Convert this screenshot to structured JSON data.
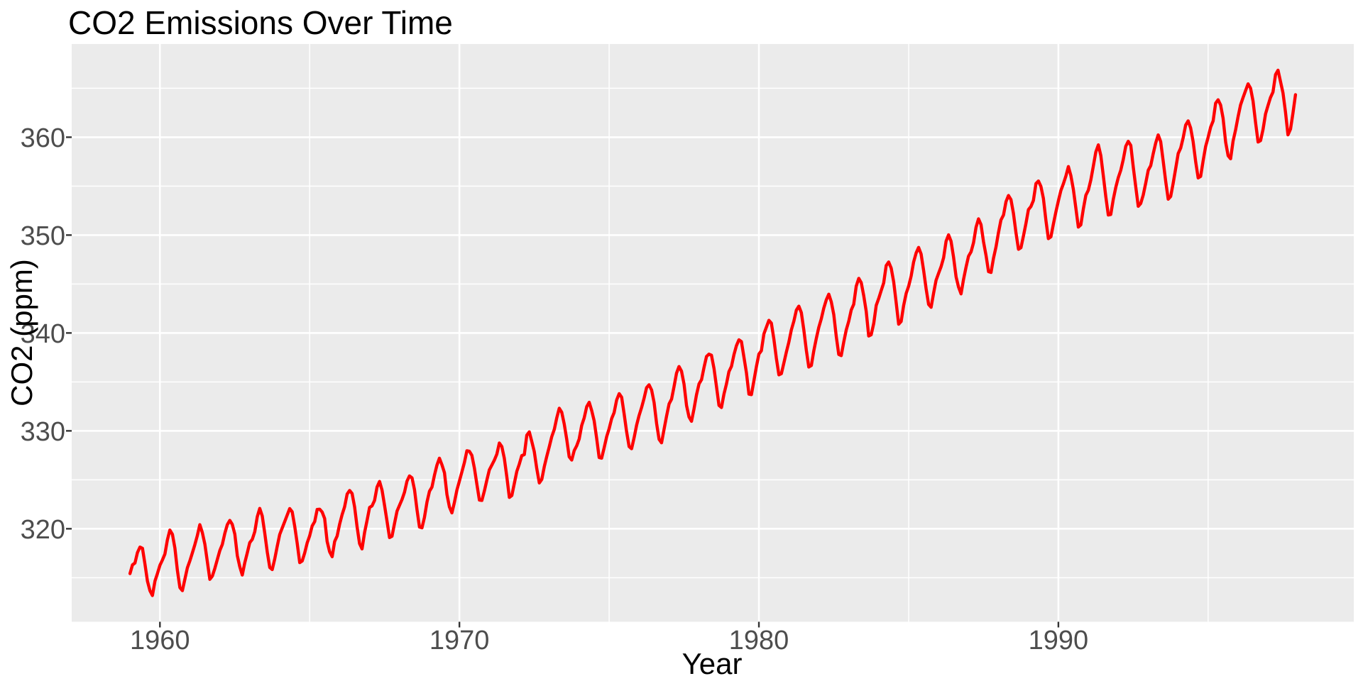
{
  "title": "CO2 Emissions Over Time",
  "chart_data": {
    "type": "line",
    "title": "CO2 Emissions Over Time",
    "xlabel": "Year",
    "ylabel": "CO2 (ppm)",
    "x_tick_labels": [
      "1960",
      "1970",
      "1980",
      "1990"
    ],
    "x_major_ticks": [
      1960,
      1970,
      1980,
      1990
    ],
    "x_minor_ticks": [
      1965,
      1975,
      1985,
      1995
    ],
    "y_tick_labels": [
      "320",
      "330",
      "340",
      "350",
      "360"
    ],
    "y_major_ticks": [
      320,
      330,
      340,
      350,
      360
    ],
    "y_minor_ticks": [
      315,
      325,
      335,
      345,
      355,
      365
    ],
    "xlim": [
      1957.054,
      1999.863
    ],
    "ylim": [
      310.497,
      369.523
    ],
    "grid": true,
    "legend": "none",
    "colors": {
      "line": "#FF0000",
      "panel_background": "#EBEBEB",
      "gridline": "#FFFFFF",
      "tick_mark": "#333333",
      "tick_label": "#4D4D4D",
      "title_text": "#000000",
      "page_background": "#FFFFFF"
    },
    "series": [
      {
        "name": "co2",
        "color": "#FF0000",
        "start_year": 1959,
        "frequency": 12,
        "values": [
          315.42,
          316.31,
          316.5,
          317.56,
          318.13,
          318.0,
          316.39,
          314.65,
          313.68,
          313.18,
          314.66,
          315.43,
          316.27,
          316.81,
          317.42,
          318.87,
          319.87,
          319.43,
          318.01,
          315.74,
          314.0,
          313.68,
          314.84,
          316.03,
          316.73,
          317.54,
          318.38,
          319.31,
          320.42,
          319.61,
          318.42,
          316.63,
          314.83,
          315.16,
          315.94,
          316.85,
          317.78,
          318.4,
          319.53,
          320.42,
          320.85,
          320.45,
          319.45,
          317.25,
          316.11,
          315.27,
          316.53,
          317.53,
          318.58,
          318.92,
          319.7,
          321.22,
          322.08,
          321.31,
          319.58,
          317.61,
          316.05,
          315.83,
          316.91,
          318.2,
          319.41,
          320.07,
          320.74,
          321.4,
          322.06,
          321.73,
          320.27,
          318.54,
          316.54,
          316.71,
          317.53,
          318.55,
          319.27,
          320.28,
          320.73,
          321.97,
          322.0,
          321.71,
          321.05,
          318.71,
          317.66,
          317.14,
          318.7,
          319.25,
          320.46,
          321.43,
          322.23,
          323.54,
          323.91,
          323.59,
          322.24,
          320.2,
          318.48,
          317.94,
          319.63,
          320.87,
          322.17,
          322.34,
          322.88,
          324.25,
          324.83,
          323.93,
          322.38,
          320.76,
          319.1,
          319.24,
          320.56,
          321.8,
          322.4,
          322.99,
          323.73,
          324.86,
          325.4,
          325.2,
          323.98,
          321.95,
          320.18,
          320.09,
          321.16,
          322.74,
          323.83,
          324.26,
          325.47,
          326.5,
          327.21,
          326.54,
          325.72,
          323.5,
          322.22,
          321.62,
          322.69,
          323.95,
          324.89,
          325.82,
          326.77,
          327.97,
          327.91,
          327.5,
          326.18,
          324.53,
          322.93,
          322.9,
          323.85,
          324.96,
          326.01,
          326.51,
          327.01,
          327.62,
          328.76,
          328.4,
          327.2,
          325.27,
          323.2,
          323.4,
          324.63,
          325.85,
          326.6,
          327.47,
          327.58,
          329.56,
          329.9,
          328.92,
          327.88,
          326.16,
          324.68,
          325.04,
          326.34,
          327.39,
          328.37,
          329.4,
          330.14,
          331.33,
          332.31,
          331.9,
          330.7,
          329.15,
          327.35,
          327.02,
          327.99,
          328.48,
          329.18,
          330.55,
          331.32,
          332.48,
          332.92,
          332.08,
          331.01,
          329.23,
          327.27,
          327.21,
          328.29,
          329.41,
          330.23,
          331.25,
          331.87,
          333.14,
          333.8,
          333.43,
          331.73,
          329.9,
          328.4,
          328.17,
          329.32,
          330.59,
          331.58,
          332.39,
          333.33,
          334.41,
          334.71,
          334.17,
          332.89,
          330.77,
          329.14,
          328.78,
          330.14,
          331.52,
          332.75,
          333.24,
          334.53,
          335.9,
          336.57,
          336.1,
          334.76,
          332.59,
          331.42,
          330.98,
          332.24,
          333.68,
          334.8,
          335.22,
          336.47,
          337.59,
          337.84,
          337.72,
          336.37,
          334.51,
          332.6,
          332.38,
          333.75,
          334.78,
          336.05,
          336.59,
          337.79,
          338.71,
          339.3,
          339.12,
          337.56,
          335.92,
          333.75,
          333.7,
          335.12,
          336.56,
          337.84,
          338.19,
          339.91,
          340.6,
          341.29,
          341.0,
          339.39,
          337.43,
          335.72,
          335.84,
          336.93,
          338.04,
          339.06,
          340.3,
          341.21,
          342.33,
          342.74,
          342.08,
          340.32,
          338.26,
          336.52,
          336.68,
          338.19,
          339.44,
          340.57,
          341.44,
          342.53,
          343.39,
          343.96,
          343.18,
          341.88,
          339.65,
          337.81,
          337.69,
          339.09,
          340.32,
          341.2,
          342.35,
          342.93,
          344.77,
          345.58,
          345.14,
          343.81,
          342.21,
          339.69,
          339.82,
          340.98,
          342.82,
          343.52,
          344.33,
          345.11,
          346.88,
          347.25,
          346.62,
          345.22,
          343.11,
          340.9,
          341.18,
          342.8,
          344.04,
          344.79,
          345.82,
          347.25,
          348.17,
          348.74,
          348.07,
          346.38,
          344.51,
          342.92,
          342.62,
          344.06,
          345.38,
          346.11,
          346.78,
          347.68,
          349.37,
          350.03,
          349.37,
          347.76,
          345.73,
          344.68,
          343.99,
          345.48,
          346.72,
          347.84,
          348.29,
          349.23,
          350.8,
          351.66,
          351.07,
          349.33,
          347.92,
          346.27,
          346.18,
          347.64,
          348.78,
          350.25,
          351.54,
          352.05,
          353.41,
          354.04,
          353.62,
          352.22,
          350.27,
          348.55,
          348.72,
          349.91,
          351.18,
          352.6,
          352.92,
          353.53,
          355.26,
          355.52,
          354.97,
          353.75,
          351.52,
          349.64,
          349.83,
          351.14,
          352.37,
          353.5,
          354.55,
          355.23,
          356.04,
          357.0,
          356.07,
          354.67,
          352.76,
          350.82,
          351.04,
          352.69,
          354.07,
          354.59,
          355.63,
          357.03,
          358.48,
          359.22,
          358.12,
          356.06,
          353.92,
          352.05,
          352.11,
          353.64,
          354.89,
          355.88,
          356.63,
          357.72,
          359.07,
          359.58,
          359.17,
          356.94,
          354.92,
          352.94,
          353.23,
          354.09,
          355.33,
          356.63,
          357.1,
          358.32,
          359.41,
          360.23,
          359.55,
          357.53,
          355.48,
          353.67,
          353.95,
          355.3,
          356.78,
          358.34,
          358.89,
          359.95,
          361.25,
          361.67,
          360.94,
          359.55,
          357.49,
          355.84,
          356.0,
          357.59,
          359.05,
          359.98,
          361.03,
          361.66,
          363.48,
          363.82,
          363.3,
          361.94,
          359.5,
          358.11,
          357.8,
          359.61,
          360.74,
          362.09,
          363.29,
          364.06,
          364.76,
          365.45,
          365.01,
          363.7,
          361.54,
          359.51,
          359.65,
          360.8,
          362.38,
          363.23,
          364.06,
          364.61,
          366.4,
          366.84,
          365.68,
          364.52,
          362.57,
          360.24,
          360.83,
          362.49,
          364.34
        ]
      }
    ]
  }
}
